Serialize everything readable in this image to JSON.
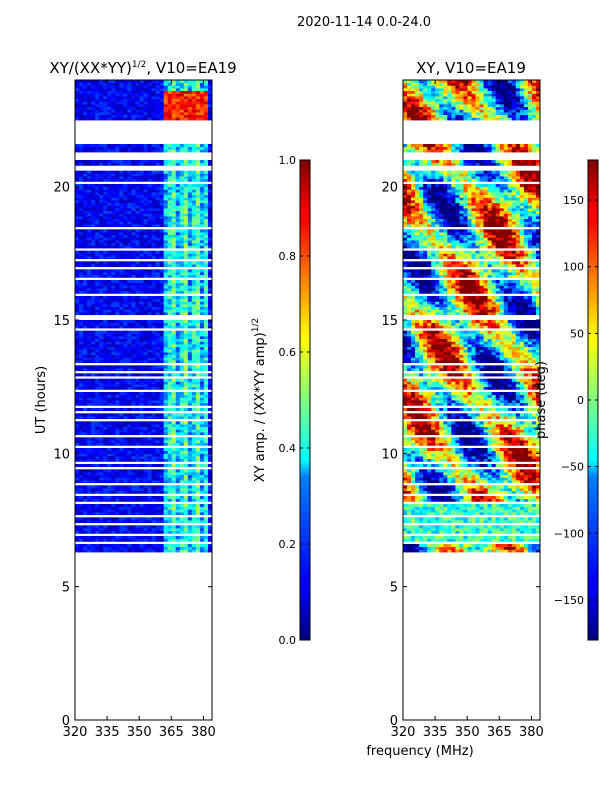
{
  "suptitle": "2020-11-14 0.0-24.0",
  "xlabel_shared": "frequency (MHz)",
  "chart_data": [
    {
      "type": "heatmap",
      "title_main": "XY/(XX*YY)",
      "title_sup": "1/2",
      "title_rest": ", V10=EA19",
      "ylabel": "UT (hours)",
      "xlim": [
        320,
        384
      ],
      "ylim": [
        0,
        24
      ],
      "xticks": [
        "320",
        "335",
        "350",
        "365",
        "380"
      ],
      "xtick_values": [
        320,
        335,
        350,
        365,
        380
      ],
      "yticks": [
        "0",
        "5",
        "10",
        "15",
        "20"
      ],
      "ytick_values": [
        0,
        5,
        10,
        15,
        20
      ],
      "data_range_ut": [
        6.3,
        24.0
      ],
      "bright_band_mhz": [
        361,
        381
      ],
      "colorbar": {
        "label_main": "XY amp. / (XX*YY amp)",
        "label_sup": "1/2",
        "range": [
          0.0,
          1.0
        ],
        "ticks": [
          "0.0",
          "0.2",
          "0.4",
          "0.6",
          "0.8",
          "1.0"
        ],
        "tick_values": [
          0.0,
          0.2,
          0.4,
          0.6,
          0.8,
          1.0
        ],
        "colormap": "jet"
      }
    },
    {
      "type": "heatmap",
      "title_main": "XY, V10=EA19",
      "ylabel": "",
      "xlim": [
        320,
        384
      ],
      "ylim": [
        0,
        24
      ],
      "xticks": [
        "320",
        "335",
        "350",
        "365",
        "380"
      ],
      "xtick_values": [
        320,
        335,
        350,
        365,
        380
      ],
      "yticks": [
        "0",
        "5",
        "10",
        "15",
        "20"
      ],
      "ytick_values": [
        0,
        5,
        10,
        15,
        20
      ],
      "data_range_ut": [
        6.3,
        24.0
      ],
      "colorbar": {
        "label_main": "phase (deg)",
        "range": [
          -180,
          180
        ],
        "ticks": [
          "−150",
          "−100",
          "−50",
          "0",
          "50",
          "100",
          "150"
        ],
        "tick_values": [
          -150,
          -100,
          -50,
          0,
          50,
          100,
          150
        ],
        "colormap": "jet"
      }
    }
  ],
  "flagged_ut_ranges": [
    [
      21.6,
      22.5
    ],
    [
      21.0,
      21.3
    ],
    [
      20.65,
      20.85
    ],
    [
      20.1,
      20.2
    ],
    [
      19.8,
      19.85
    ],
    [
      18.4,
      18.5
    ],
    [
      17.6,
      17.7
    ],
    [
      17.2,
      17.3
    ],
    [
      16.9,
      17.0
    ],
    [
      16.5,
      16.6
    ],
    [
      15.9,
      16.0
    ],
    [
      15.0,
      15.2
    ],
    [
      14.6,
      14.7
    ],
    [
      13.3,
      13.4
    ],
    [
      13.0,
      13.1
    ],
    [
      12.8,
      12.85
    ],
    [
      12.3,
      12.4
    ],
    [
      11.7,
      11.8
    ],
    [
      11.5,
      11.55
    ],
    [
      11.2,
      11.25
    ],
    [
      10.6,
      10.7
    ],
    [
      10.2,
      10.25
    ],
    [
      9.6,
      9.7
    ],
    [
      9.4,
      9.5
    ],
    [
      8.8,
      8.85
    ],
    [
      8.4,
      8.5
    ],
    [
      8.1,
      8.2
    ],
    [
      7.6,
      7.65
    ],
    [
      7.3,
      7.35
    ],
    [
      6.9,
      6.95
    ],
    [
      6.6,
      6.65
    ]
  ]
}
